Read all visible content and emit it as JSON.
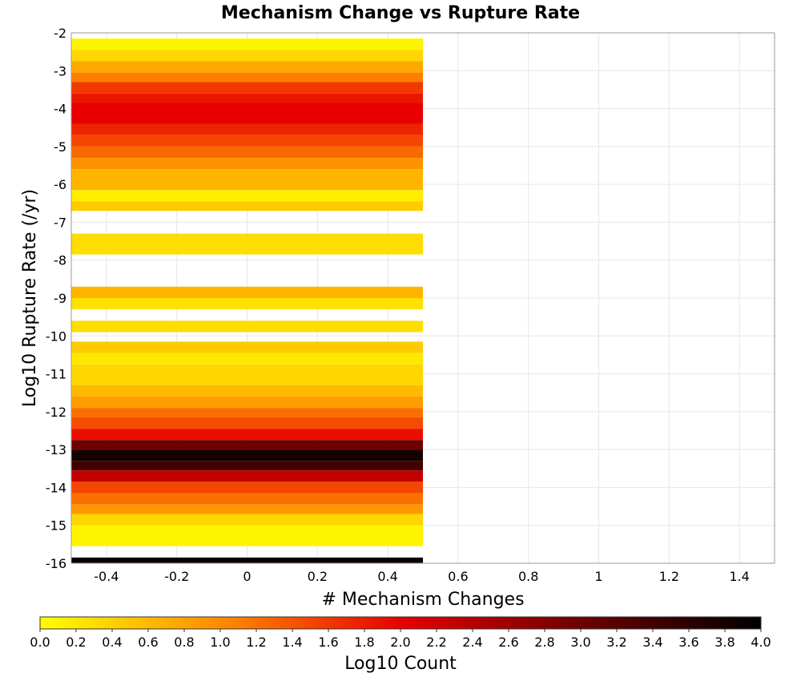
{
  "chart_data": {
    "type": "heatmap",
    "title": "Mechanism Change vs Rupture Rate",
    "xlabel": "# Mechanism Changes",
    "ylabel": "Log10 Rupture Rate (/yr)",
    "xlim": [
      -0.5,
      1.5
    ],
    "ylim": [
      -16,
      -2
    ],
    "xticks": [
      "-0.4",
      "-0.2",
      "0",
      "0.2",
      "0.4",
      "0.6",
      "0.8",
      "1",
      "1.2",
      "1.4"
    ],
    "xtick_values": [
      -0.4,
      -0.2,
      0,
      0.2,
      0.4,
      0.6,
      0.8,
      1,
      1.2,
      1.4
    ],
    "yticks": [
      "-2",
      "-3",
      "-4",
      "-5",
      "-6",
      "-7",
      "-8",
      "-9",
      "-10",
      "-11",
      "-12",
      "-13",
      "-14",
      "-15",
      "-16"
    ],
    "ytick_values": [
      -2,
      -3,
      -4,
      -5,
      -6,
      -7,
      -8,
      -9,
      -10,
      -11,
      -12,
      -13,
      -14,
      -15,
      -16
    ],
    "grid": true,
    "cell_x_range": [
      -0.5,
      0.5
    ],
    "cells": [
      {
        "y0": -2.15,
        "y1": -2.45,
        "value": 0.1
      },
      {
        "y0": -2.45,
        "y1": -2.75,
        "value": 0.35
      },
      {
        "y0": -2.75,
        "y1": -3.05,
        "value": 0.75
      },
      {
        "y0": -3.05,
        "y1": -3.3,
        "value": 1.1
      },
      {
        "y0": -3.3,
        "y1": -3.6,
        "value": 1.6
      },
      {
        "y0": -3.6,
        "y1": -3.85,
        "value": 1.85
      },
      {
        "y0": -3.85,
        "y1": -4.4,
        "value": 2.0
      },
      {
        "y0": -4.4,
        "y1": -4.7,
        "value": 1.75
      },
      {
        "y0": -4.7,
        "y1": -5.0,
        "value": 1.5
      },
      {
        "y0": -5.0,
        "y1": -5.3,
        "value": 1.25
      },
      {
        "y0": -5.3,
        "y1": -5.6,
        "value": 0.95
      },
      {
        "y0": -5.6,
        "y1": -6.15,
        "value": 0.65
      },
      {
        "y0": -6.15,
        "y1": -6.45,
        "value": 0.15
      },
      {
        "y0": -6.45,
        "y1": -6.7,
        "value": 0.45
      },
      {
        "y0": -7.3,
        "y1": -7.85,
        "value": 0.3
      },
      {
        "y0": -8.7,
        "y1": -9.0,
        "value": 0.65
      },
      {
        "y0": -9.0,
        "y1": -9.3,
        "value": 0.25
      },
      {
        "y0": -9.6,
        "y1": -9.9,
        "value": 0.3
      },
      {
        "y0": -10.15,
        "y1": -10.45,
        "value": 0.45
      },
      {
        "y0": -10.45,
        "y1": -10.75,
        "value": 0.2
      },
      {
        "y0": -10.75,
        "y1": -11.3,
        "value": 0.35
      },
      {
        "y0": -11.3,
        "y1": -11.6,
        "value": 0.6
      },
      {
        "y0": -11.6,
        "y1": -11.9,
        "value": 0.85
      },
      {
        "y0": -11.9,
        "y1": -12.15,
        "value": 1.2
      },
      {
        "y0": -12.15,
        "y1": -12.45,
        "value": 1.45
      },
      {
        "y0": -12.45,
        "y1": -12.75,
        "value": 1.9
      },
      {
        "y0": -12.75,
        "y1": -13.0,
        "value": 3.0
      },
      {
        "y0": -13.0,
        "y1": -13.3,
        "value": 3.8
      },
      {
        "y0": -13.3,
        "y1": -13.55,
        "value": 3.4
      },
      {
        "y0": -13.55,
        "y1": -13.85,
        "value": 2.3
      },
      {
        "y0": -13.85,
        "y1": -14.15,
        "value": 1.5
      },
      {
        "y0": -14.15,
        "y1": -14.45,
        "value": 1.2
      },
      {
        "y0": -14.45,
        "y1": -14.7,
        "value": 0.9
      },
      {
        "y0": -14.7,
        "y1": -15.0,
        "value": 0.35
      },
      {
        "y0": -15.0,
        "y1": -15.55,
        "value": 0.1
      },
      {
        "y0": -15.85,
        "y1": -16.0,
        "value": 3.9
      }
    ],
    "colorbar": {
      "label": "Log10 Count",
      "min": 0.0,
      "max": 4.0,
      "ticks": [
        "0.0",
        "0.2",
        "0.4",
        "0.6",
        "0.8",
        "1.0",
        "1.2",
        "1.4",
        "1.6",
        "1.8",
        "2.0",
        "2.2",
        "2.4",
        "2.6",
        "2.8",
        "3.0",
        "3.2",
        "3.4",
        "3.6",
        "3.8",
        "4.0"
      ],
      "tick_values": [
        0.0,
        0.2,
        0.4,
        0.6,
        0.8,
        1.0,
        1.2,
        1.4,
        1.6,
        1.8,
        2.0,
        2.2,
        2.4,
        2.6,
        2.8,
        3.0,
        3.2,
        3.4,
        3.6,
        3.8,
        4.0
      ],
      "stops": [
        {
          "value": 0.0,
          "color": "#ffff00"
        },
        {
          "value": 1.0,
          "color": "#ff8c00"
        },
        {
          "value": 2.0,
          "color": "#e80000"
        },
        {
          "value": 3.0,
          "color": "#6e0000"
        },
        {
          "value": 4.0,
          "color": "#000000"
        }
      ]
    }
  }
}
